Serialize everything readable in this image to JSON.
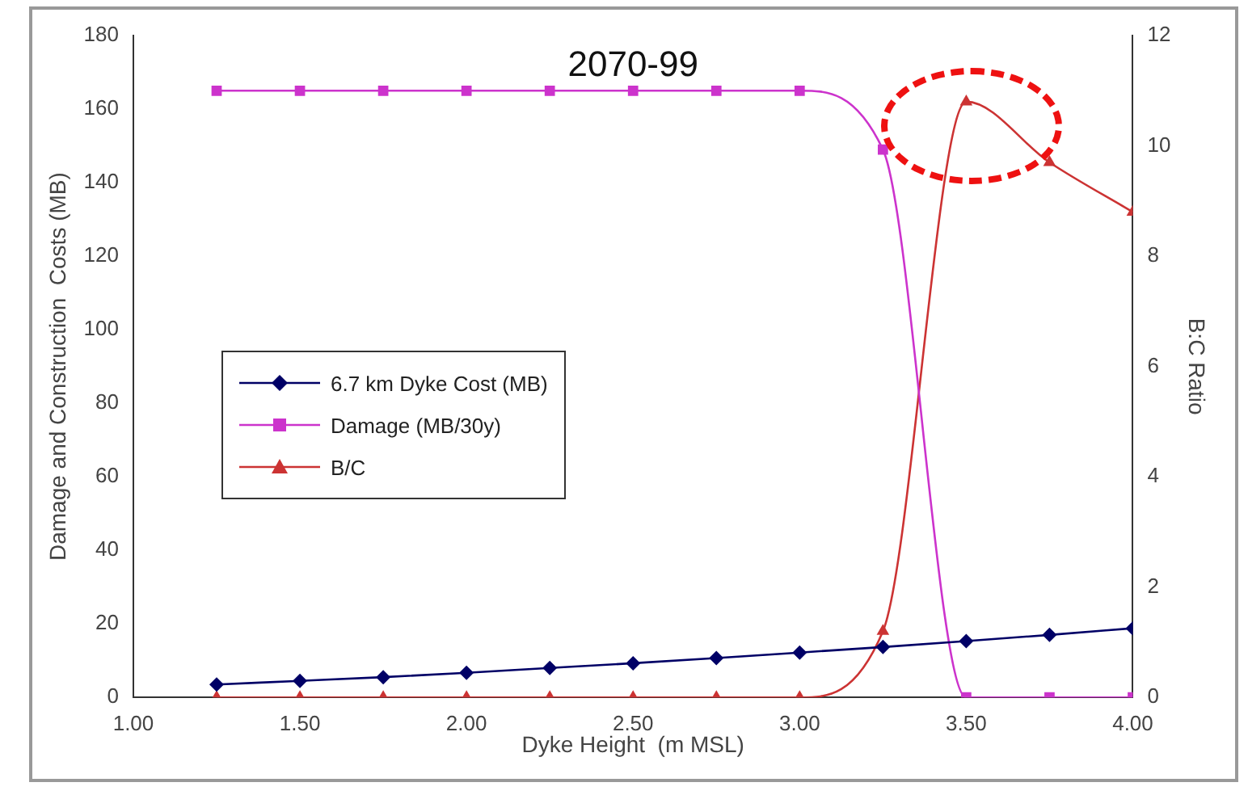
{
  "chart_data": {
    "type": "line",
    "title": "2070-99",
    "xlabel": "Dyke Height  (m MSL)",
    "ylabel": "Damage and Construction  Costs (MB)",
    "y2label": "B:C Ratio",
    "x": [
      1.25,
      1.5,
      1.75,
      2.0,
      2.25,
      2.5,
      2.75,
      3.0,
      3.25,
      3.5,
      3.75,
      4.0
    ],
    "series": [
      {
        "name": "6.7 km Dyke Cost (MB)",
        "color": "#000066",
        "marker": "diamond",
        "values": [
          3.5,
          4.5,
          5.5,
          6.7,
          8,
          9.3,
          10.7,
          12.2,
          13.7,
          15.3,
          17,
          18.8
        ]
      },
      {
        "name": "Damage (MB/30y)",
        "color": "#cc33cc",
        "marker": "square",
        "values": [
          165,
          165,
          165,
          165,
          165,
          165,
          165,
          165,
          149,
          0,
          0,
          0
        ]
      },
      {
        "name": "B/C",
        "color": "#cc3333",
        "marker": "triangle",
        "axis": "y2",
        "values": [
          0,
          0,
          0,
          0,
          0,
          0,
          0,
          0,
          1.2,
          10.8,
          9.7,
          8.8
        ]
      }
    ],
    "xlim": [
      1,
      4
    ],
    "xticks": [
      {
        "value": 1,
        "label": "1.00"
      },
      {
        "value": 1.5,
        "label": "1.50"
      },
      {
        "value": 2,
        "label": "2.00"
      },
      {
        "value": 2.5,
        "label": "2.50"
      },
      {
        "value": 3,
        "label": "3.00"
      },
      {
        "value": 3.5,
        "label": "3.50"
      },
      {
        "value": 4,
        "label": "4.00"
      }
    ],
    "ylim": [
      0,
      180
    ],
    "yticks": [
      0,
      20,
      40,
      60,
      80,
      100,
      120,
      140,
      160,
      180
    ],
    "y2lim": [
      0,
      12
    ],
    "y2ticks": [
      0,
      2,
      4,
      6,
      8,
      10,
      12
    ],
    "grid": false,
    "legend": "left"
  }
}
